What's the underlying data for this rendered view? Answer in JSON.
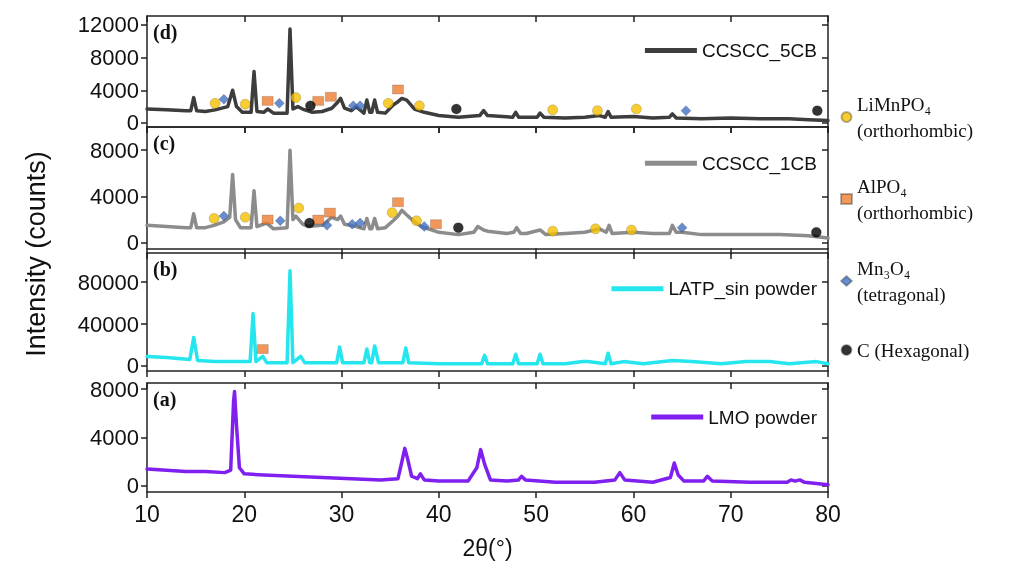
{
  "chart_data": [
    {
      "type": "line",
      "annotations": [
        "(d)"
      ],
      "ylabel": "Intensity (counts)",
      "xlim": [
        10,
        80
      ],
      "xticks": [
        10,
        20,
        30,
        40,
        50,
        60,
        70,
        80
      ],
      "ylim": [
        -500,
        13100
      ],
      "yticks": [
        0,
        4000,
        8000,
        12000
      ],
      "tick_labels": "y",
      "legend": "right",
      "series": [
        {
          "name": "CCSCC_5CB",
          "color": "#3d3d3d",
          "x": [
            10,
            12,
            14,
            14.5,
            14.8,
            15.1,
            16,
            17,
            18.3,
            18.8,
            19.2,
            19.8,
            20.7,
            21.0,
            21.3,
            22,
            22.4,
            23,
            24.4,
            24.7,
            25.0,
            25.5,
            26,
            27,
            28,
            29,
            29.5,
            29.9,
            30.3,
            31,
            31.5,
            32.3,
            32.6,
            32.9,
            33.1,
            33.4,
            33.7,
            34.5,
            35.3,
            35.8,
            36.2,
            36.7,
            37.5,
            38.5,
            40,
            42,
            44.2,
            44.6,
            45,
            47.6,
            47.9,
            48.2,
            50.1,
            50.4,
            50.8,
            53,
            55,
            56.5,
            57.1,
            57.4,
            57.7,
            60,
            62,
            63.7,
            64.0,
            64.4,
            67,
            70,
            73,
            76,
            78,
            80
          ],
          "values": [
            1700,
            1600,
            1500,
            1500,
            3100,
            1500,
            1400,
            1600,
            2000,
            4000,
            2000,
            1300,
            1300,
            6300,
            1400,
            1300,
            1700,
            1200,
            1200,
            11500,
            1700,
            2000,
            1700,
            1300,
            1400,
            1800,
            2400,
            3000,
            1800,
            1500,
            2000,
            1200,
            2800,
            1300,
            1300,
            2800,
            1300,
            1200,
            2200,
            2600,
            3000,
            2800,
            1700,
            1300,
            900,
            700,
            900,
            1500,
            900,
            700,
            1300,
            700,
            700,
            1200,
            700,
            600,
            700,
            900,
            700,
            1400,
            700,
            800,
            600,
            700,
            1100,
            600,
            500,
            600,
            500,
            500,
            400,
            300
          ]
        },
        {
          "type": "scatter",
          "name": "LiMnPO₄ (orthorhombic)",
          "color": "#f5c000",
          "marker": "circle",
          "x": [
            17.0,
            20.1,
            25.3,
            34.8,
            38.0,
            51.7,
            56.3,
            60.3
          ],
          "values": [
            2400,
            2300,
            3100,
            2400,
            2100,
            1600,
            1500,
            1700
          ]
        },
        {
          "type": "scatter",
          "name": "AlPO₄ (orthorhombic)",
          "color": "#ed7d31",
          "marker": "square",
          "x": [
            22.4,
            27.6,
            28.9,
            35.8
          ],
          "values": [
            2700,
            2700,
            3200,
            4100
          ]
        },
        {
          "type": "scatter",
          "name": "Mn₃O₄ (tetragonal)",
          "color": "#4472c4",
          "marker": "diamond",
          "x": [
            17.9,
            23.6,
            31.2,
            31.9,
            65.4
          ],
          "values": [
            2900,
            2400,
            2100,
            2100,
            1500
          ]
        },
        {
          "type": "scatter",
          "name": "C (Hexagonal)",
          "color": "#000000",
          "marker": "circle",
          "x": [
            26.8,
            41.8,
            78.9
          ],
          "values": [
            2100,
            1700,
            1500
          ]
        }
      ]
    },
    {
      "type": "line",
      "annotations": [
        "(c)"
      ],
      "xlim": [
        10,
        80
      ],
      "xticks": [
        10,
        20,
        30,
        40,
        50,
        60,
        70,
        80
      ],
      "ylim": [
        -500,
        10000
      ],
      "yticks": [
        0,
        4000,
        8000
      ],
      "tick_labels": "y",
      "legend": "top right",
      "series": [
        {
          "name": "CCSCC_1CB",
          "color": "#8c8c8c",
          "x": [
            10,
            12,
            14,
            14.5,
            14.8,
            15.1,
            16,
            16.9,
            17.9,
            18.5,
            18.8,
            19.1,
            19.6,
            20.7,
            21.0,
            21.3,
            22.3,
            23,
            24.4,
            24.7,
            25.0,
            25.3,
            26,
            26.5,
            28,
            29,
            29.6,
            29.9,
            30.3,
            31.5,
            32.3,
            32.6,
            32.9,
            33.1,
            33.4,
            33.7,
            34.5,
            35.3,
            35.8,
            36.2,
            36.7,
            37.5,
            38.2,
            40,
            42,
            43.6,
            44.0,
            44.6,
            45,
            47,
            47.7,
            48.0,
            48.4,
            49,
            50.4,
            51,
            53,
            55,
            56.5,
            57.2,
            57.5,
            57.8,
            60,
            62,
            63.7,
            64.0,
            64.4,
            65,
            67,
            70,
            73,
            75,
            78,
            80
          ],
          "values": [
            1500,
            1400,
            1300,
            1300,
            2500,
            1300,
            1300,
            1500,
            1800,
            2200,
            5900,
            2000,
            1300,
            1300,
            4500,
            1400,
            1700,
            1200,
            1300,
            8000,
            2000,
            2300,
            1600,
            1400,
            1500,
            2200,
            2000,
            2300,
            1600,
            1400,
            1200,
            2100,
            1200,
            1200,
            2100,
            1200,
            1300,
            1900,
            2300,
            2800,
            2400,
            1800,
            1400,
            900,
            700,
            900,
            1400,
            1100,
            1000,
            800,
            900,
            1300,
            800,
            800,
            1100,
            700,
            800,
            900,
            1200,
            900,
            1500,
            800,
            900,
            800,
            800,
            1500,
            900,
            900,
            700,
            700,
            700,
            700,
            600,
            400
          ]
        },
        {
          "type": "scatter",
          "color": "#f5c000",
          "marker": "circle",
          "x": [
            16.9,
            20.1,
            25.6,
            35.2,
            37.7,
            51.7,
            56.1,
            59.8
          ],
          "values": [
            2100,
            2200,
            3000,
            2600,
            1900,
            1000,
            1200,
            1100
          ]
        },
        {
          "type": "scatter",
          "color": "#ed7d31",
          "marker": "square",
          "x": [
            22.4,
            27.6,
            28.8,
            35.8,
            39.7
          ],
          "values": [
            2000,
            2000,
            2600,
            3500,
            1600
          ]
        },
        {
          "type": "scatter",
          "color": "#4472c4",
          "marker": "diamond",
          "x": [
            17.9,
            23.7,
            28.5,
            31.1,
            31.9,
            38.5,
            65.0
          ],
          "values": [
            2300,
            1900,
            1500,
            1600,
            1700,
            1400,
            1300
          ]
        },
        {
          "type": "scatter",
          "color": "#000000",
          "marker": "circle",
          "x": [
            26.7,
            42.0,
            78.8
          ],
          "values": [
            1700,
            1300,
            900
          ]
        }
      ]
    },
    {
      "type": "line",
      "annotations": [
        "(b)"
      ],
      "xlim": [
        10,
        80
      ],
      "xticks": [
        10,
        20,
        30,
        40,
        50,
        60,
        70,
        80
      ],
      "ylim": [
        -5000,
        108000
      ],
      "yticks": [
        0,
        40000,
        80000
      ],
      "tick_labels": "y",
      "legend": "top right",
      "series": [
        {
          "name": "LATP_sin powder",
          "color": "#25e6ee",
          "x": [
            10,
            12,
            14.4,
            14.8,
            15.2,
            17,
            20.6,
            20.9,
            21.2,
            21.9,
            22.3,
            24.4,
            24.7,
            25.0,
            25.8,
            26.2,
            29.5,
            29.8,
            30.1,
            32.3,
            32.6,
            32.9,
            33.1,
            33.4,
            33.8,
            36.3,
            36.6,
            36.9,
            40,
            44.4,
            44.7,
            45,
            47.6,
            47.9,
            48.2,
            50.1,
            50.4,
            50.7,
            53,
            54.8,
            55.3,
            57.1,
            57.4,
            57.7,
            59,
            61,
            64,
            66,
            69,
            71.6,
            74,
            76,
            78.8,
            80
          ],
          "values": [
            9000,
            8000,
            6000,
            27000,
            5000,
            4000,
            4000,
            50000,
            4000,
            9000,
            3000,
            3000,
            91000,
            3000,
            9000,
            3000,
            3000,
            18000,
            3000,
            3000,
            16000,
            3000,
            3000,
            19000,
            3000,
            3000,
            17000,
            3000,
            2000,
            2000,
            10000,
            2000,
            2000,
            11000,
            2000,
            2000,
            11000,
            2000,
            2000,
            4000,
            4000,
            2000,
            12000,
            2000,
            4000,
            2000,
            5000,
            4000,
            2000,
            4000,
            4000,
            2000,
            4000,
            2000
          ]
        },
        {
          "type": "scatter",
          "color": "#ed7d31",
          "marker": "square",
          "x": [
            21.9
          ],
          "values": [
            16000
          ]
        }
      ]
    },
    {
      "type": "line",
      "annotations": [
        "(a)"
      ],
      "xlabel": "2θ(°)",
      "xlim": [
        10,
        80
      ],
      "xticks": [
        10,
        20,
        30,
        40,
        50,
        60,
        70,
        80
      ],
      "ylim": [
        -500,
        8500
      ],
      "yticks": [
        0,
        4000,
        8000
      ],
      "legend": "top right",
      "series": [
        {
          "name": "LMO powder",
          "color": "#8020f0",
          "x": [
            10,
            12,
            14,
            16,
            18,
            18.6,
            18.9,
            19.0,
            19.2,
            19.5,
            20,
            22,
            25,
            28,
            31,
            34,
            35.8,
            36.2,
            36.5,
            36.8,
            37.2,
            37.8,
            38.1,
            38.5,
            40,
            43,
            43.9,
            44.3,
            44.7,
            45.3,
            47,
            48.2,
            48.5,
            48.9,
            52,
            56,
            58.1,
            58.6,
            59.1,
            62,
            63.8,
            64.2,
            64.6,
            65.2,
            67.2,
            67.6,
            68.1,
            72,
            75.8,
            76.2,
            76.6,
            77.1,
            77.6,
            80
          ],
          "values": [
            1400,
            1300,
            1200,
            1200,
            1100,
            1300,
            7000,
            7800,
            5000,
            1500,
            1000,
            900,
            800,
            700,
            600,
            500,
            600,
            2000,
            3100,
            2200,
            800,
            600,
            1000,
            500,
            400,
            400,
            1500,
            3000,
            1800,
            500,
            400,
            500,
            800,
            500,
            300,
            300,
            500,
            1100,
            500,
            300,
            700,
            1900,
            900,
            400,
            400,
            800,
            400,
            300,
            300,
            500,
            400,
            500,
            300,
            100
          ]
        }
      ]
    }
  ]
}
